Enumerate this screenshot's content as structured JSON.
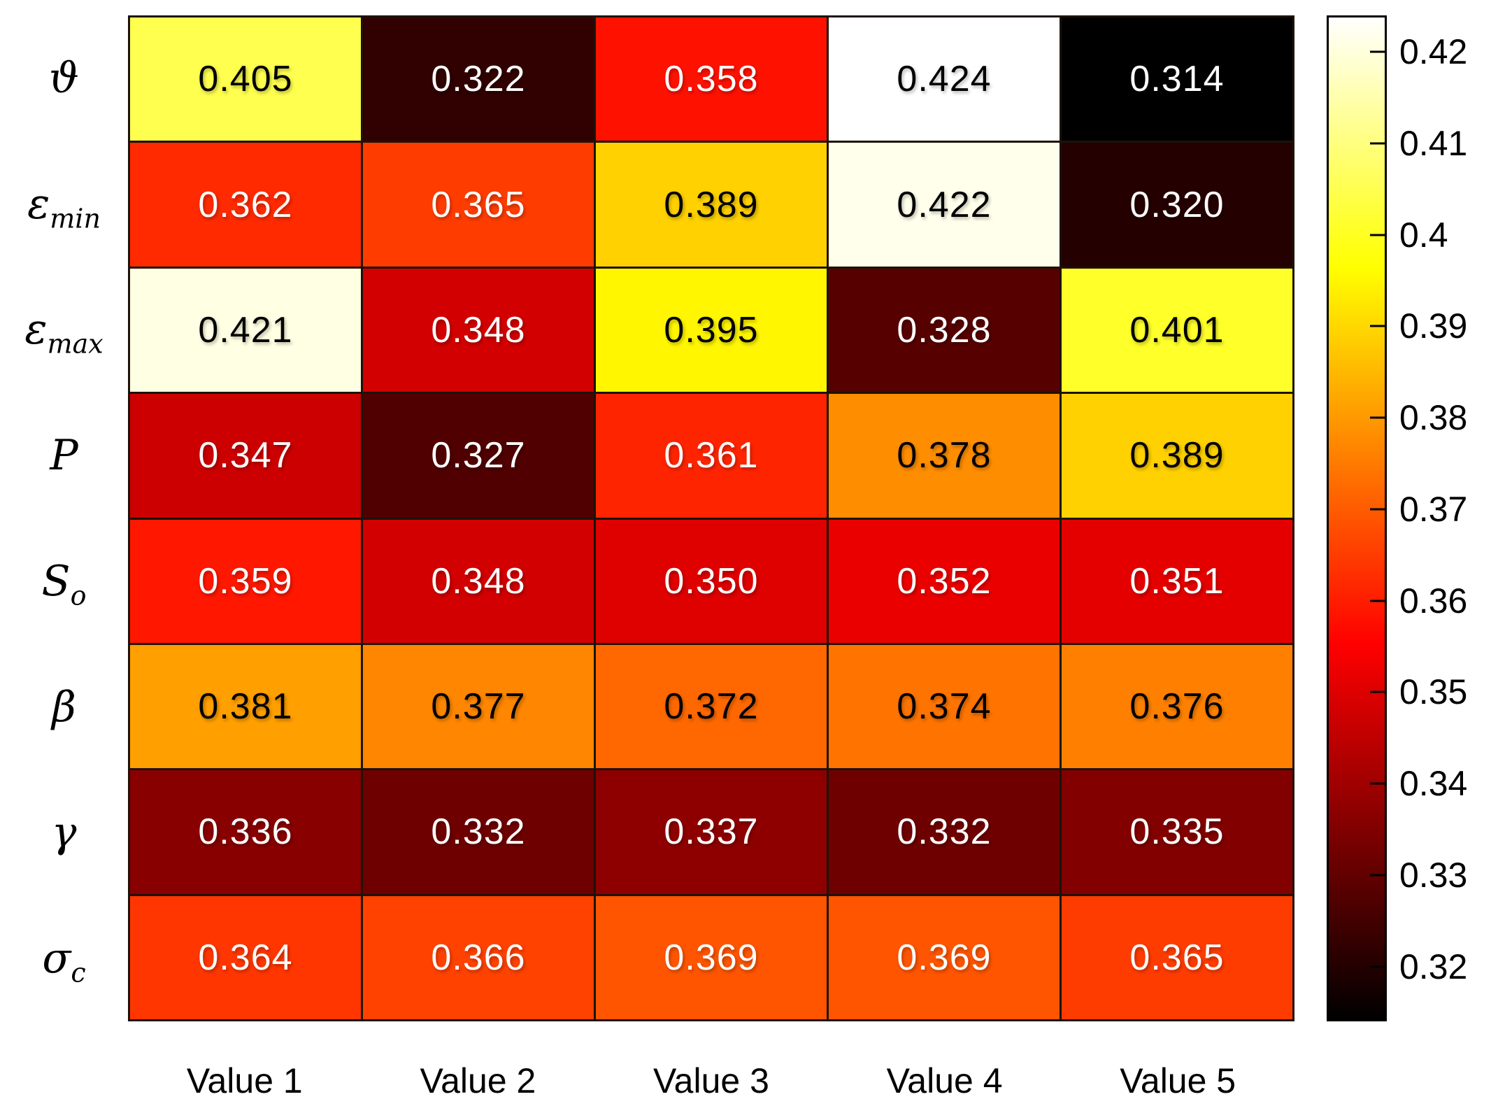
{
  "chart_data": {
    "type": "heatmap",
    "title": "",
    "xlabel": "",
    "ylabel": "",
    "columns": [
      "Value 1",
      "Value 2",
      "Value 3",
      "Value 4",
      "Value 5"
    ],
    "rows": [
      {
        "label": "ϑ",
        "main": "ϑ",
        "sub": ""
      },
      {
        "label": "ε_min",
        "main": "ε",
        "sub": "min"
      },
      {
        "label": "ε_max",
        "main": "ε",
        "sub": "max"
      },
      {
        "label": "P",
        "main": "P",
        "sub": ""
      },
      {
        "label": "S_o",
        "main": "S",
        "sub": "o"
      },
      {
        "label": "β",
        "main": "β",
        "sub": ""
      },
      {
        "label": "γ",
        "main": "γ",
        "sub": ""
      },
      {
        "label": "σ_c",
        "main": "σ",
        "sub": "c"
      }
    ],
    "values": [
      [
        0.405,
        0.322,
        0.358,
        0.424,
        0.314
      ],
      [
        0.362,
        0.365,
        0.389,
        0.422,
        0.32
      ],
      [
        0.421,
        0.348,
        0.395,
        0.328,
        0.401
      ],
      [
        0.347,
        0.327,
        0.361,
        0.378,
        0.389
      ],
      [
        0.359,
        0.348,
        0.35,
        0.352,
        0.351
      ],
      [
        0.381,
        0.377,
        0.372,
        0.374,
        0.376
      ],
      [
        0.336,
        0.332,
        0.337,
        0.332,
        0.335
      ],
      [
        0.364,
        0.366,
        0.369,
        0.369,
        0.365
      ]
    ],
    "value_decimals": 3,
    "colormap": "hot",
    "color_range": [
      0.314,
      0.424
    ],
    "colorbar_ticks": [
      0.42,
      0.41,
      0.4,
      0.39,
      0.38,
      0.37,
      0.36,
      0.35,
      0.34,
      0.33,
      0.32
    ],
    "colorbar_position": "right",
    "grid_lines": true,
    "grid_line_color": "#1c120a",
    "cell_text_color_dark": "#000000",
    "cell_text_color_light": "#ffffff"
  }
}
